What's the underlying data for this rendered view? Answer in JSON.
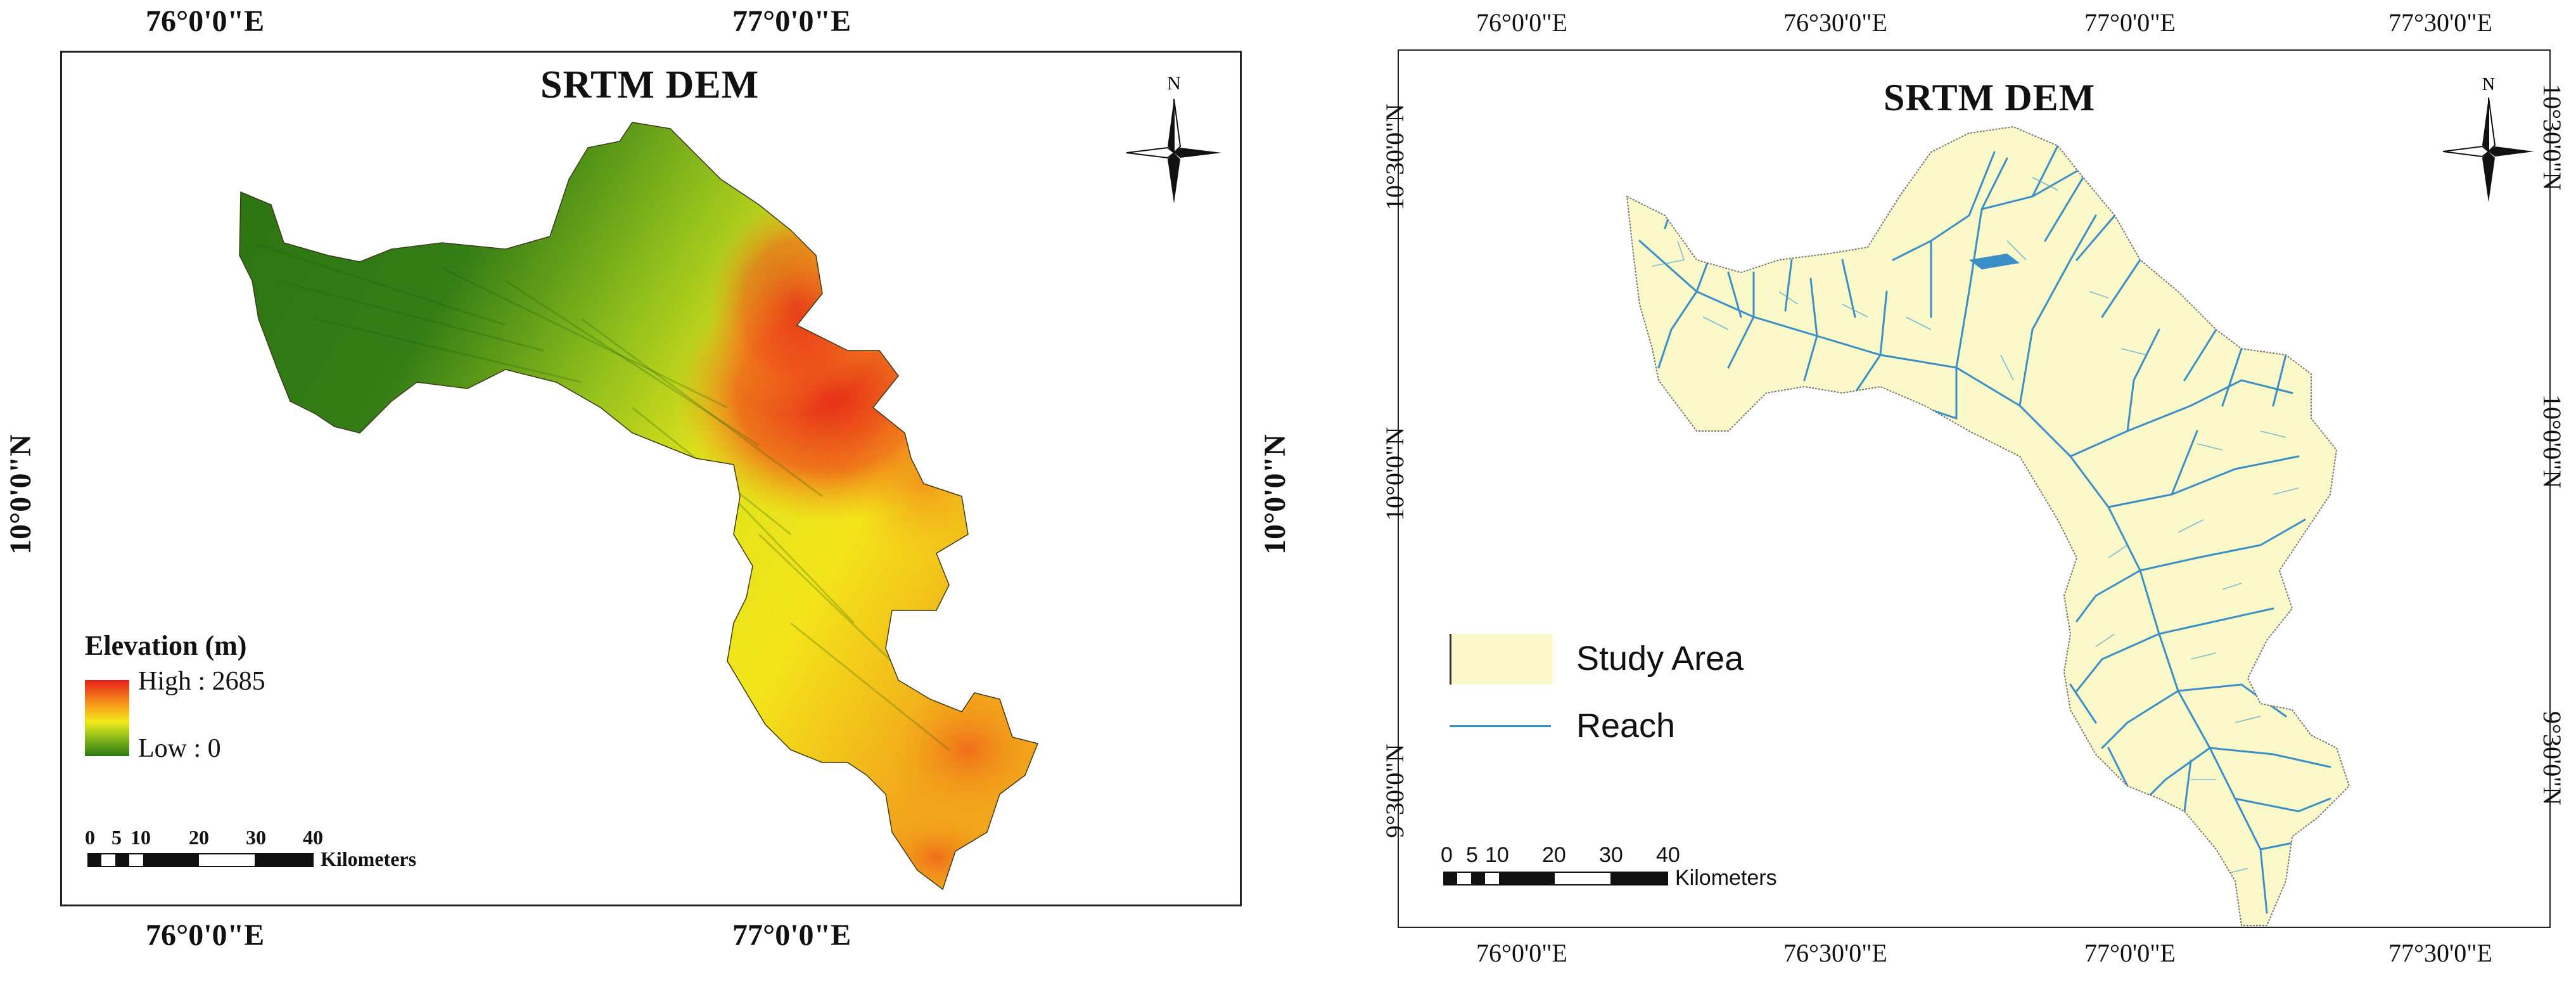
{
  "left_map": {
    "title": "SRTM DEM",
    "north_label": "N",
    "top_ticks": [
      "76°0'0\"E",
      "77°0'0\"E"
    ],
    "bottom_ticks": [
      "76°0'0\"E",
      "77°0'0\"E"
    ],
    "left_ticks": [
      "10°0'0\"N"
    ],
    "right_ticks": [
      "10°0'0\"N"
    ],
    "legend": {
      "title": "Elevation (m)",
      "high_label": "High : 2685",
      "low_label": "Low : 0",
      "high_color": "#e8201a",
      "mid_color": "#f2ea1a",
      "low_color": "#2a7a12"
    },
    "scale": {
      "numbers": [
        "0",
        "5",
        "10",
        "20",
        "30",
        "40"
      ],
      "unit": "Kilometers"
    }
  },
  "right_map": {
    "title": "SRTM DEM",
    "north_label": "N",
    "top_ticks": [
      "76°0'0\"E",
      "76°30'0\"E",
      "77°0'0\"E",
      "77°30'0\"E"
    ],
    "bottom_ticks": [
      "76°0'0\"E",
      "76°30'0\"E",
      "77°0'0\"E",
      "77°30'0\"E"
    ],
    "left_ticks": [
      "10°30'0\"N",
      "10°0'0\"N",
      "9°30'0\"N"
    ],
    "right_ticks": [
      "10°30'0\"N",
      "10°0'0\"N",
      "9°30'0\"N"
    ],
    "legend": {
      "study_area_label": "Study Area",
      "reach_label": "Reach",
      "study_area_color": "#fbf8c9",
      "reach_color": "#3a8fc6"
    },
    "scale": {
      "numbers": [
        "0",
        "5",
        "10",
        "20",
        "30",
        "40"
      ],
      "unit": "Kilometers"
    }
  }
}
